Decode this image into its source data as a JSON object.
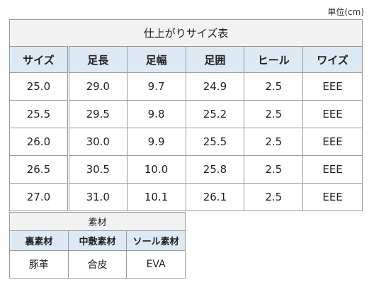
{
  "unit_label": "単位(cm)",
  "size_table": {
    "title": "仕上がりサイズ表",
    "headers": [
      "サイズ",
      "足長",
      "足幅",
      "足囲",
      "ヒール",
      "ワイズ"
    ],
    "rows": [
      [
        "25.0",
        "29.0",
        "9.7",
        "24.9",
        "2.5",
        "EEE"
      ],
      [
        "25.5",
        "29.5",
        "9.8",
        "25.2",
        "2.5",
        "EEE"
      ],
      [
        "26.0",
        "30.0",
        "9.9",
        "25.5",
        "2.5",
        "EEE"
      ],
      [
        "26.5",
        "30.5",
        "10.0",
        "25.8",
        "2.5",
        "EEE"
      ],
      [
        "27.0",
        "31.0",
        "10.1",
        "26.1",
        "2.5",
        "EEE"
      ]
    ]
  },
  "material_table": {
    "title": "素材",
    "headers": [
      "裏素材",
      "中敷素材",
      "ソール素材"
    ],
    "values": [
      "豚革",
      "合皮",
      "EVA"
    ]
  }
}
